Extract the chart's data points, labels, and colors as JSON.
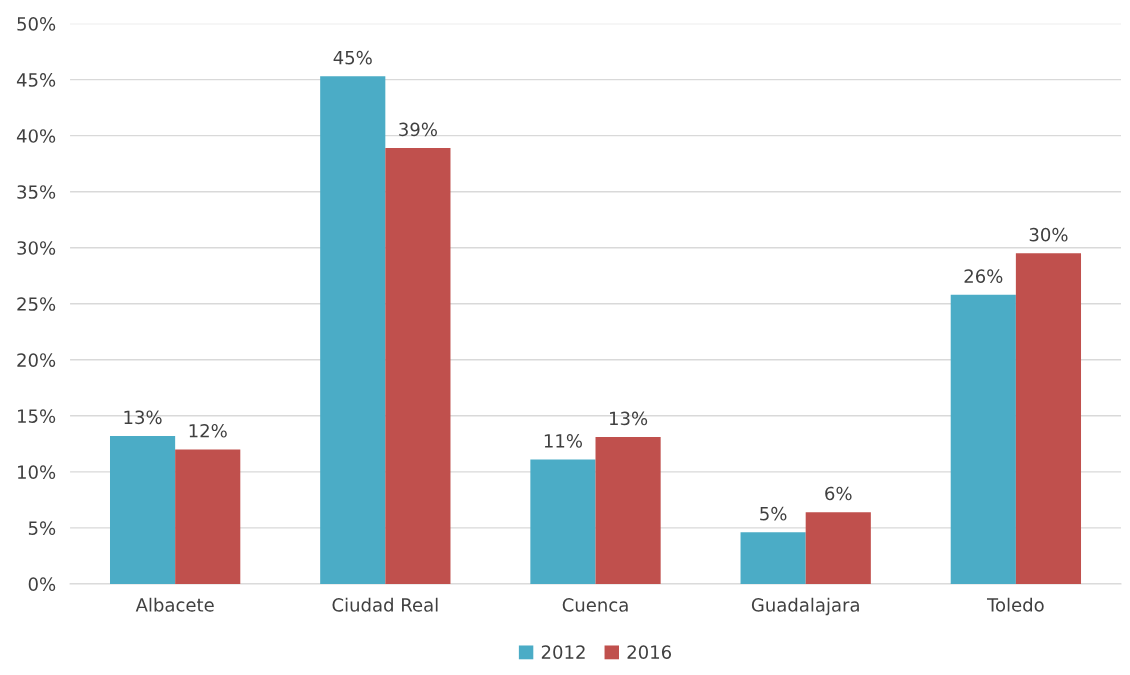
{
  "chart_data": {
    "type": "bar",
    "categories": [
      "Albacete",
      "Ciudad Real",
      "Cuenca",
      "Guadalajara",
      "Toledo"
    ],
    "series": [
      {
        "name": "2012",
        "color": "#4bacc6",
        "values": [
          13.2,
          45.3,
          11.1,
          4.6,
          25.8
        ],
        "value_labels": [
          "13%",
          "45%",
          "11%",
          "5%",
          "26%"
        ]
      },
      {
        "name": "2016",
        "color": "#c0504d",
        "values": [
          12.0,
          38.9,
          13.1,
          6.4,
          29.5
        ],
        "value_labels": [
          "12%",
          "39%",
          "13%",
          "6%",
          "30%"
        ]
      }
    ],
    "ylim": [
      0,
      50
    ],
    "yticks": [
      {
        "value": 0,
        "label": "0%"
      },
      {
        "value": 5,
        "label": "5%"
      },
      {
        "value": 10,
        "label": "10%"
      },
      {
        "value": 15,
        "label": "15%"
      },
      {
        "value": 20,
        "label": "20%"
      },
      {
        "value": 25,
        "label": "25%"
      },
      {
        "value": 30,
        "label": "30%"
      },
      {
        "value": 35,
        "label": "35%"
      },
      {
        "value": 40,
        "label": "40%"
      },
      {
        "value": 45,
        "label": "45%"
      },
      {
        "value": 50,
        "label": "50%"
      }
    ],
    "grid": "y",
    "legend": "bottom"
  }
}
